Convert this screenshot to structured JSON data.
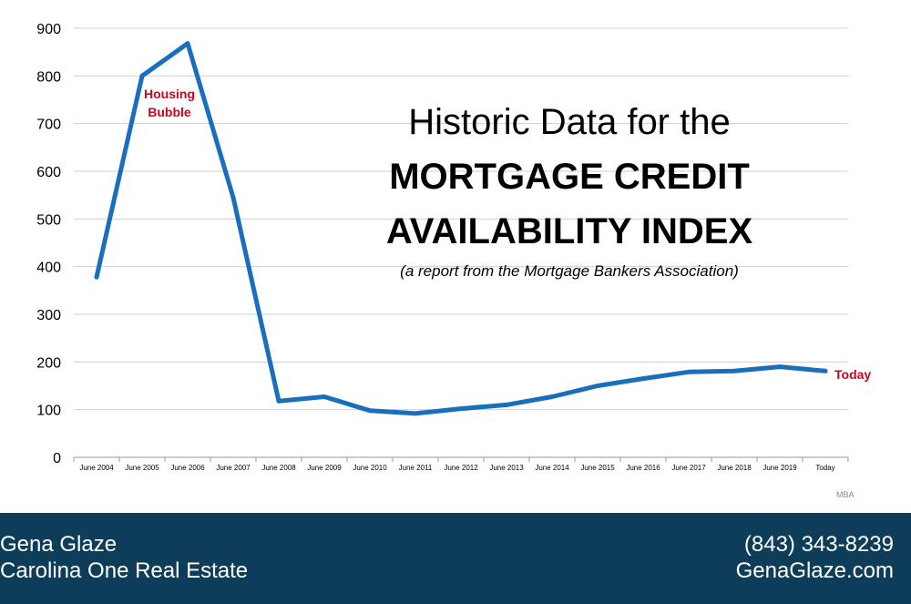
{
  "chart_data": {
    "type": "line",
    "categories": [
      "June 2004",
      "June 2005",
      "June 2006",
      "June 2007",
      "June 2008",
      "June 2009",
      "June 2010",
      "June 2011",
      "June 2012",
      "June 2013",
      "June 2014",
      "June 2015",
      "June 2016",
      "June 2017",
      "June 2018",
      "June 2019",
      "Today"
    ],
    "series": [
      {
        "name": "Mortgage Credit Availability Index",
        "color": "#1a6fbd",
        "values": [
          378,
          800,
          868,
          545,
          118,
          127,
          98,
          92,
          102,
          110,
          127,
          150,
          165,
          179,
          181,
          190,
          181
        ]
      }
    ],
    "ylim": [
      0,
      900
    ],
    "yticks": [
      0,
      100,
      200,
      300,
      400,
      500,
      600,
      700,
      800,
      900
    ],
    "grid": true,
    "title": {
      "line1": "Historic Data for the",
      "line2": "MORTGAGE CREDIT",
      "line3": "AVAILABILITY INDEX"
    },
    "subtitle": "(a report from the Mortgage Bankers Association)",
    "annotations": {
      "bubble_line1": "Housing",
      "bubble_line2": "Bubble",
      "today": "Today"
    },
    "source": "MBA"
  },
  "footer": {
    "name": "Gena Glaze",
    "company": "Carolina One Real Estate",
    "phone": "(843) 343-8239",
    "website": "GenaGlaze.com"
  }
}
